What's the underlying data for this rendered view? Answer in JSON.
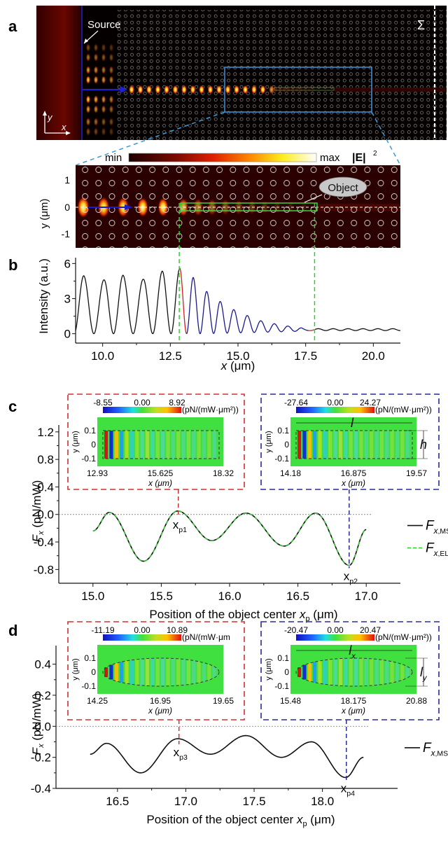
{
  "panel_labels": {
    "a": "a",
    "b": "b",
    "c": "c",
    "d": "d"
  },
  "panel_a": {
    "source_label": "Source",
    "sigma_label": "Σ",
    "axis_y": "y",
    "axis_x": "x"
  },
  "colorbar_E": {
    "min_label": "min",
    "max_label": "max",
    "quantity": "|E|",
    "superscript": "2"
  },
  "zoom_map": {
    "ylabel": "y (μm)",
    "yticks": [
      "1",
      "0",
      "-1"
    ],
    "object_label": "Object"
  },
  "colors": {
    "red_box": "#d03030",
    "blue_box": "#2a2a9a",
    "green_dash": "#33cc33",
    "cyan_dash": "#2e9bd6",
    "curve_black": "#111111",
    "curve_red": "#d02020",
    "curve_blue": "#1a1a8c"
  },
  "chart_data": [
    {
      "id": "b",
      "type": "line",
      "title": "",
      "xlabel": "x (μm)",
      "ylabel": "Intensity (a.u.)",
      "xlim": [
        9.0,
        21.0
      ],
      "ylim": [
        -0.8,
        6.5
      ],
      "xticks": [
        "10.0",
        "12.5",
        "15.0",
        "17.5",
        "20.0"
      ],
      "xtick_values": [
        10.0,
        12.5,
        15.0,
        17.5,
        20.0
      ],
      "yticks": [
        "0",
        "3",
        "6"
      ],
      "ytick_values": [
        0,
        3,
        6
      ],
      "object_start": 12.83,
      "object_end": 17.83,
      "peaks_x": [
        9.3,
        10.05,
        10.75,
        11.5,
        12.2,
        12.85,
        13.35,
        13.85,
        14.35,
        14.85,
        15.35,
        15.85,
        16.35,
        16.85,
        17.35
      ],
      "peaks_y": [
        4.95,
        4.6,
        5.0,
        4.65,
        5.35,
        5.6,
        4.8,
        3.6,
        2.75,
        2.05,
        1.55,
        1.1,
        0.85,
        0.65,
        0.5
      ],
      "tail_level": 0.35,
      "segments": [
        {
          "name": "free-space",
          "color_key": "curve_black",
          "x_range": [
            9.0,
            12.83
          ]
        },
        {
          "name": "object-front",
          "color_key": "curve_red",
          "x_range": [
            12.83,
            13.1
          ]
        },
        {
          "name": "object-body",
          "color_key": "curve_blue",
          "x_range": [
            13.1,
            17.6
          ]
        },
        {
          "name": "object-end",
          "color_key": "curve_red",
          "x_range": [
            17.6,
            17.83
          ]
        },
        {
          "name": "behind",
          "color_key": "curve_black",
          "x_range": [
            17.83,
            21.0
          ]
        }
      ]
    },
    {
      "id": "c",
      "type": "line",
      "xlabel": "Position of the object center x_p (μm)",
      "ylabel": "F_x (pN/mW)",
      "xlim": [
        14.75,
        17.25
      ],
      "ylim": [
        -1.0,
        1.3
      ],
      "xticks": [
        "15.0",
        "15.5",
        "16.0",
        "16.5",
        "17.0"
      ],
      "xtick_values": [
        15.0,
        15.5,
        16.0,
        16.5,
        17.0
      ],
      "yticks": [
        "1.2",
        "0.8",
        "0.4",
        "0.0",
        "-0.4",
        "-0.8"
      ],
      "ytick_values": [
        1.2,
        0.8,
        0.4,
        0.0,
        -0.4,
        -0.8
      ],
      "series": [
        {
          "name": "F_x,MST",
          "style": "solid",
          "color_key": "curve_black",
          "x": [
            15.0,
            15.12,
            15.37,
            15.62,
            15.87,
            16.12,
            16.4,
            16.63,
            16.875,
            17.0
          ],
          "y": [
            -0.24,
            0.03,
            -0.68,
            0.05,
            -0.38,
            0.02,
            -0.46,
            0.02,
            -0.74,
            -0.22
          ]
        },
        {
          "name": "F_x,EL",
          "style": "dashed",
          "color_key": "green_dash",
          "x": [
            15.0,
            15.12,
            15.37,
            15.62,
            15.87,
            16.12,
            16.4,
            16.63,
            16.875,
            17.0
          ],
          "y": [
            -0.24,
            0.03,
            -0.68,
            0.05,
            -0.38,
            0.02,
            -0.46,
            0.02,
            -0.74,
            -0.22
          ]
        }
      ],
      "markers": [
        {
          "label": "x_p1",
          "x": 15.625,
          "color_key": "red_box"
        },
        {
          "label": "x_p2",
          "x": 16.875,
          "color_key": "blue_box"
        }
      ],
      "legend": [
        "F_x,MST",
        "F_x,EL"
      ],
      "legend_position": "right",
      "insets": [
        {
          "name": "inset-xp1",
          "shape": "rectangle",
          "cbar_min": "-8.55",
          "cbar_mid": "0.00",
          "cbar_max": "8.92",
          "cbar_unit": "(pN/(mW·μm²))",
          "xticks": [
            "12.93",
            "15.625",
            "18.32"
          ],
          "xlabel": "x (μm)",
          "yticks": [
            "0.1",
            "0",
            "-0.1"
          ],
          "ylabel": "y (μm)",
          "dim_labels": []
        },
        {
          "name": "inset-xp2",
          "shape": "rectangle",
          "cbar_min": "-27.64",
          "cbar_mid": "0.00",
          "cbar_max": "24.27",
          "cbar_unit": "(pN/(mW·μm²))",
          "xticks": [
            "14.18",
            "16.875",
            "19.57"
          ],
          "xlabel": "x (μm)",
          "yticks": [
            "0.1",
            "0",
            "-0.1"
          ],
          "ylabel": "y (μm)",
          "dim_labels": [
            "l",
            "h"
          ]
        }
      ]
    },
    {
      "id": "d",
      "type": "line",
      "xlabel": "Position of the object center x_p (μm)",
      "ylabel": "F_x (pN/mW)",
      "xlim": [
        16.05,
        18.55
      ],
      "ylim": [
        -0.4,
        0.52
      ],
      "xticks": [
        "16.5",
        "17.0",
        "17.5",
        "18.0"
      ],
      "xtick_values": [
        16.5,
        17.0,
        17.5,
        18.0
      ],
      "yticks": [
        "0.4",
        "0.2",
        "0.0",
        "-0.2",
        "-0.4"
      ],
      "ytick_values": [
        0.4,
        0.2,
        0.0,
        -0.2,
        -0.4
      ],
      "series": [
        {
          "name": "F_x,MST",
          "style": "solid",
          "color_key": "curve_black",
          "x": [
            16.3,
            16.42,
            16.67,
            16.94,
            17.18,
            17.44,
            17.7,
            17.92,
            18.17,
            18.3
          ],
          "y": [
            -0.18,
            -0.11,
            -0.3,
            -0.08,
            -0.18,
            -0.06,
            -0.2,
            -0.1,
            -0.33,
            -0.2
          ]
        }
      ],
      "markers": [
        {
          "label": "x_p3",
          "x": 16.95,
          "color_key": "red_box"
        },
        {
          "label": "x_p4",
          "x": 18.175,
          "color_key": "blue_box"
        }
      ],
      "legend": [
        "F_x,MST"
      ],
      "legend_position": "right",
      "insets": [
        {
          "name": "inset-xp3",
          "shape": "ellipse",
          "cbar_min": "-11.19",
          "cbar_mid": "0.00",
          "cbar_max": "10.89",
          "cbar_unit": "(pN/(mW·μm",
          "xticks": [
            "14.25",
            "16.95",
            "19.65"
          ],
          "xlabel": "x (μm)",
          "yticks": [
            "0.1",
            "0",
            "-0.1"
          ],
          "ylabel": "y (μm)",
          "dim_labels": []
        },
        {
          "name": "inset-xp4",
          "shape": "ellipse",
          "cbar_min": "-20.47",
          "cbar_mid": "0.00",
          "cbar_max": "20.47",
          "cbar_unit": "(pN/(mW·μm²))",
          "xticks": [
            "15.48",
            "18.175",
            "20.88"
          ],
          "xlabel": "x (μm)",
          "yticks": [
            "0.1",
            "0",
            "-0.1"
          ],
          "ylabel": "y (μm)",
          "dim_labels": [
            "l_x",
            "l_y"
          ]
        }
      ]
    }
  ]
}
